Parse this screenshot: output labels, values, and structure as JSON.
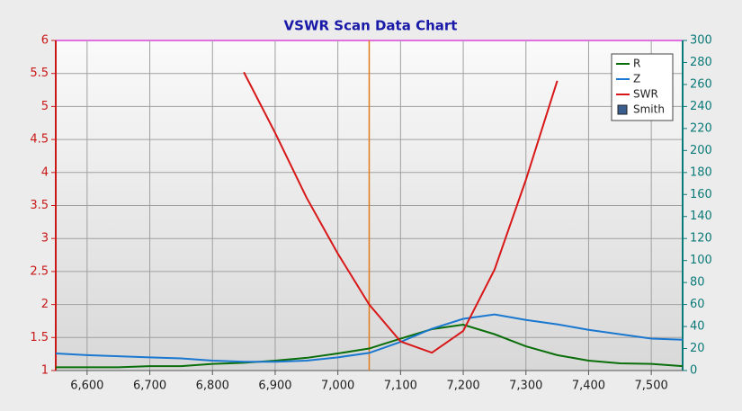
{
  "chart_data": {
    "type": "line",
    "title": "VSWR Scan Data Chart",
    "x": [
      6550,
      6600,
      6650,
      6700,
      6750,
      6800,
      6850,
      6900,
      6950,
      7000,
      7050,
      7100,
      7150,
      7200,
      7250,
      7300,
      7350,
      7400,
      7450,
      7500,
      7550
    ],
    "xlim": [
      6550,
      7550
    ],
    "xticks": [
      {
        "value": 6600,
        "label": "6,600"
      },
      {
        "value": 6700,
        "label": "6,700"
      },
      {
        "value": 6800,
        "label": "6,800"
      },
      {
        "value": 6900,
        "label": "6,900"
      },
      {
        "value": 7000,
        "label": "7,000"
      },
      {
        "value": 7100,
        "label": "7,100"
      },
      {
        "value": 7200,
        "label": "7,200"
      },
      {
        "value": 7300,
        "label": "7,300"
      },
      {
        "value": 7400,
        "label": "7,400"
      },
      {
        "value": 7500,
        "label": "7,500"
      }
    ],
    "ylim": [
      1,
      6
    ],
    "yticks": [
      1,
      1.5,
      2,
      2.5,
      3,
      3.5,
      4,
      4.5,
      5,
      5.5,
      6
    ],
    "y2lim": [
      0,
      300
    ],
    "y2ticks": [
      0,
      20,
      40,
      60,
      80,
      100,
      120,
      140,
      160,
      180,
      200,
      220,
      240,
      260,
      280,
      300
    ],
    "grid": true,
    "legend": "top-right",
    "cursor": 7050,
    "cursor_color": "#e07a1f",
    "series": [
      {
        "name": "R",
        "color": "#0a6e0a",
        "axis": "y2",
        "values": [
          3,
          3,
          3,
          4,
          4,
          6,
          7,
          9,
          11.5,
          15.5,
          20,
          29,
          37.6,
          41.7,
          33,
          22,
          14,
          9,
          6.5,
          6,
          4
        ]
      },
      {
        "name": "Z",
        "color": "#1a78d0",
        "axis": "y2",
        "values": [
          15.5,
          14,
          13,
          12,
          11,
          9,
          8,
          8,
          9,
          12,
          16,
          26,
          38,
          47,
          51,
          46,
          42,
          37,
          33,
          29,
          28
        ]
      },
      {
        "name": "SWR",
        "color": "#d81818",
        "values": [
          null,
          null,
          null,
          null,
          null,
          null,
          5.52,
          4.6,
          3.62,
          2.77,
          2.0,
          1.44,
          1.27,
          1.6,
          2.53,
          3.89,
          5.39,
          null,
          null,
          null,
          null
        ]
      }
    ],
    "extra_legend": {
      "name": "Smith",
      "color": "#3a5f8f"
    }
  }
}
